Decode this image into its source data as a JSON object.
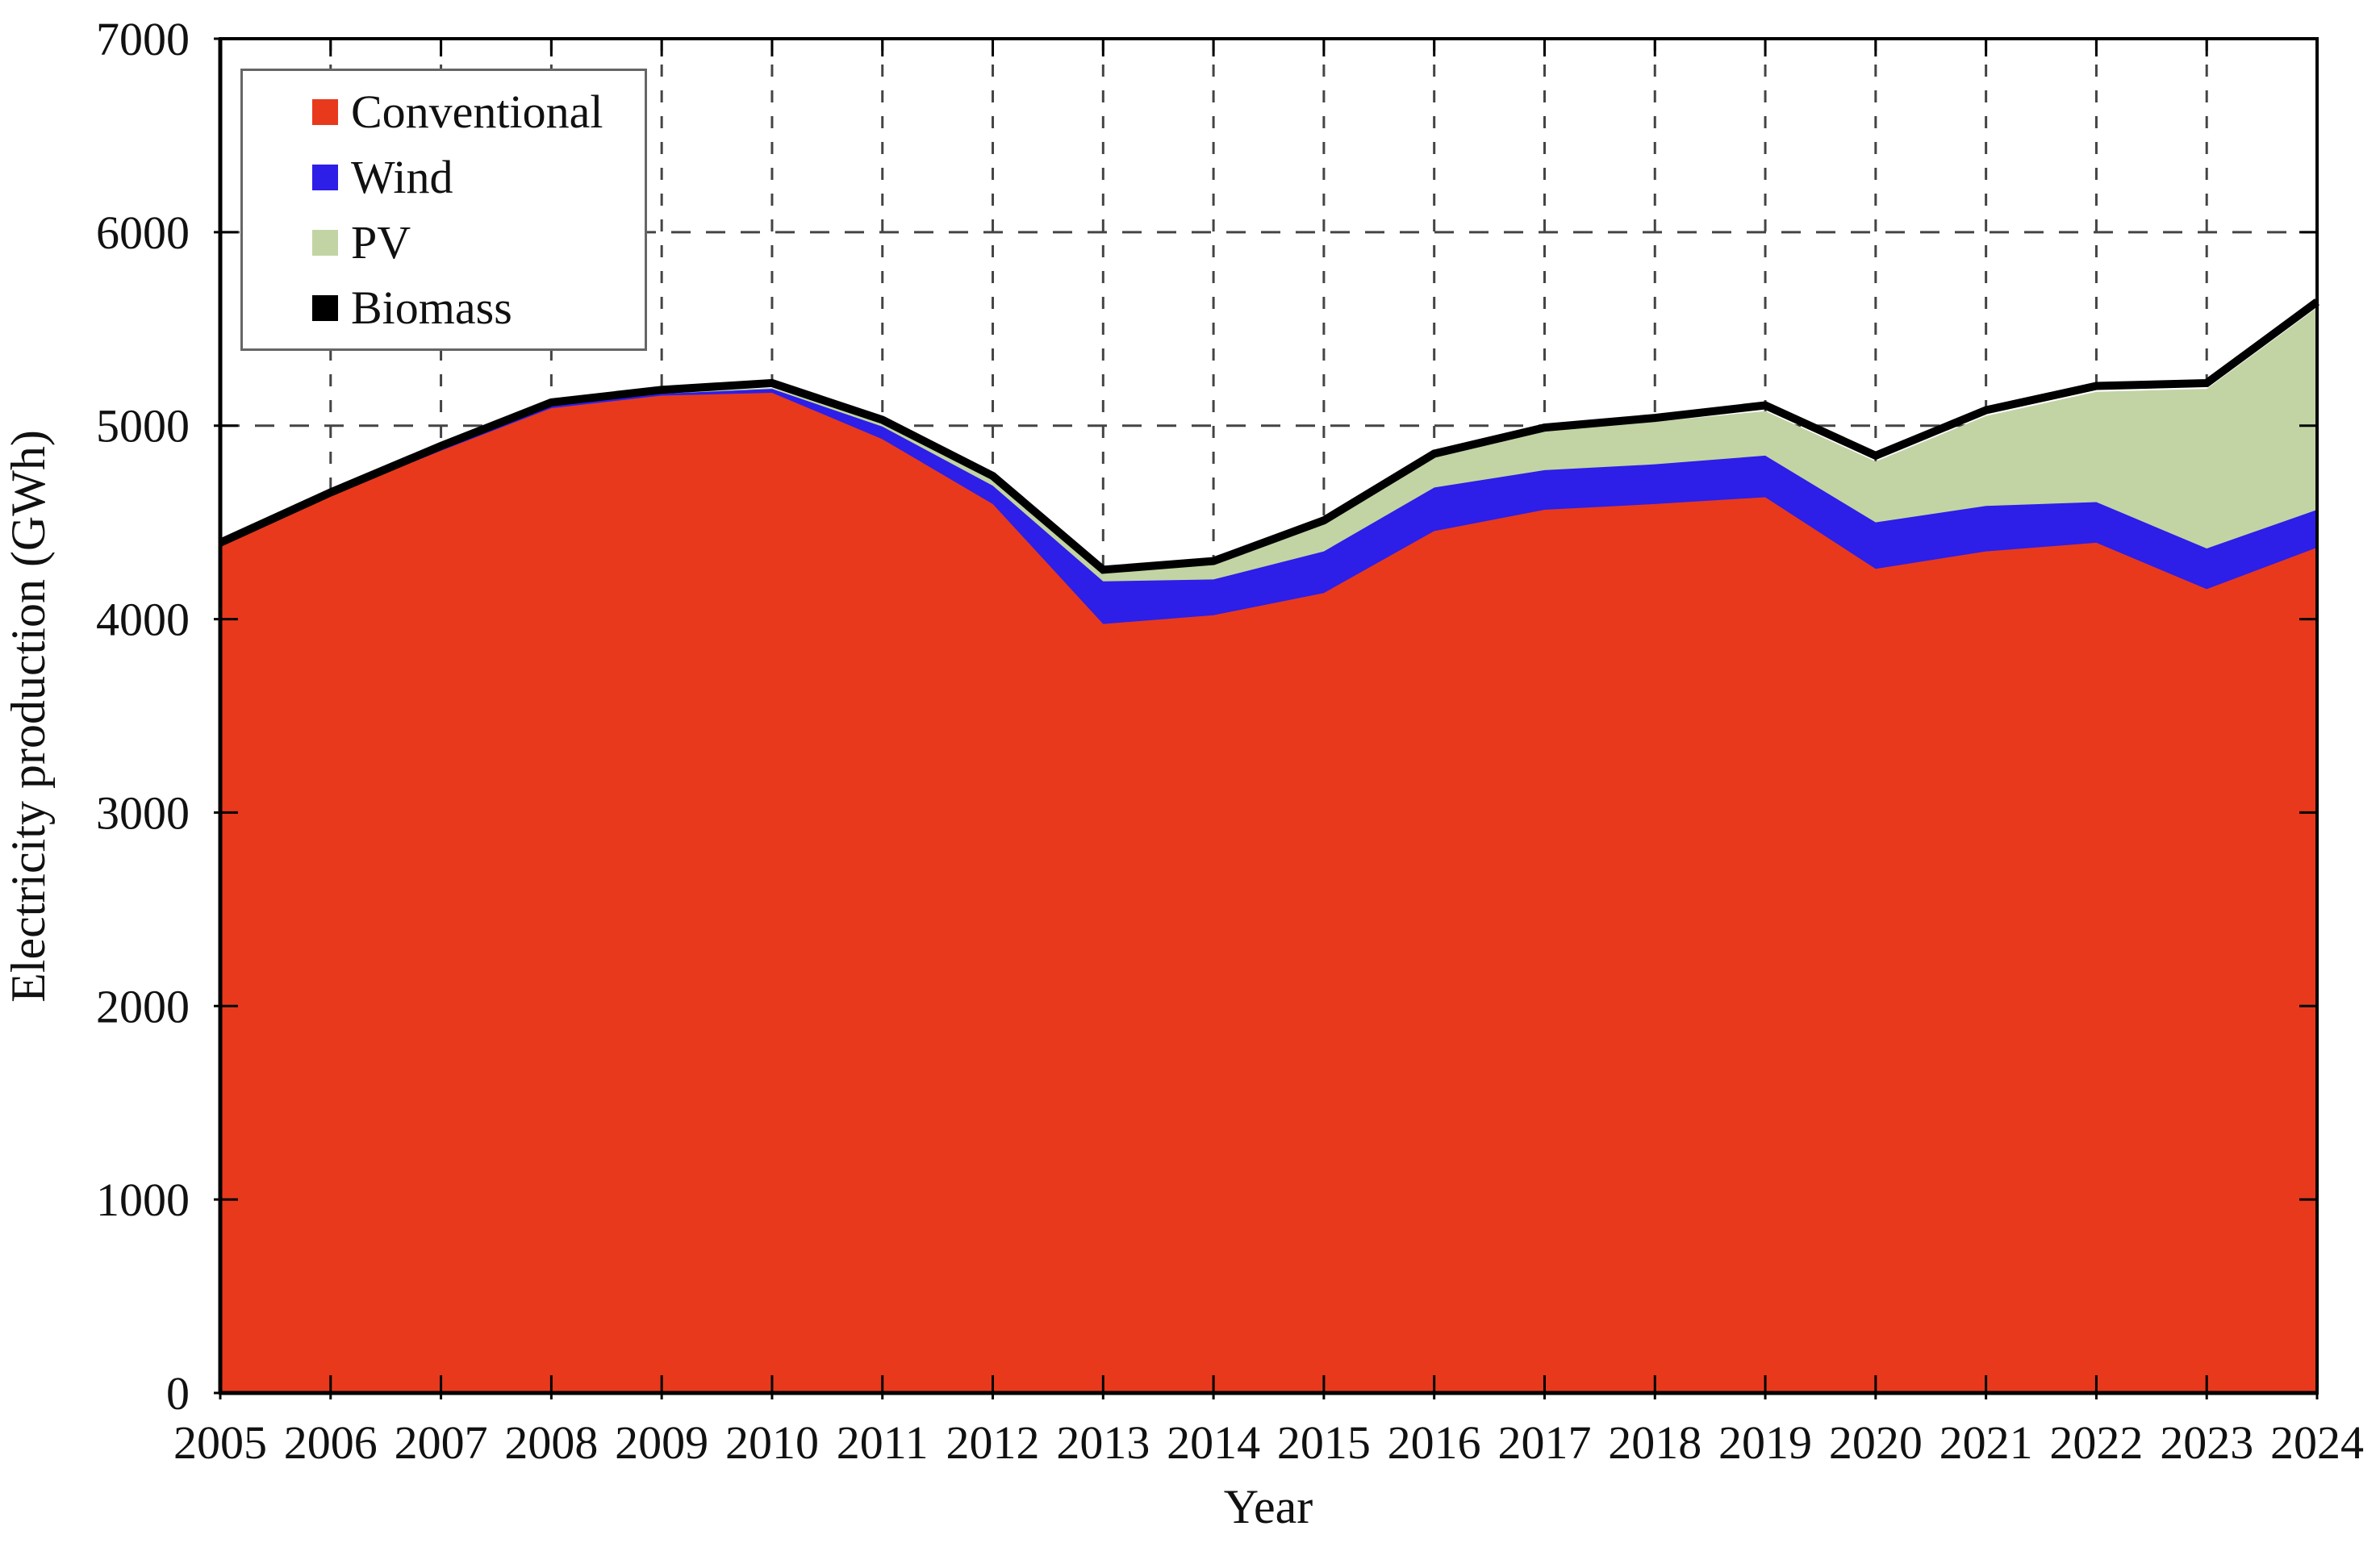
{
  "axes": {
    "y_label": "Electricity production (GWh)",
    "x_label": "Year",
    "y_ticks": [
      "0",
      "1000",
      "2000",
      "3000",
      "4000",
      "5000",
      "6000",
      "7000"
    ],
    "x_ticks": [
      "2005",
      "2006",
      "2007",
      "2008",
      "2009",
      "2010",
      "2011",
      "2012",
      "2013",
      "2014",
      "2015",
      "2016",
      "2017",
      "2018",
      "2019",
      "2020",
      "2021",
      "2022",
      "2023",
      "2024"
    ]
  },
  "legend": {
    "items": [
      {
        "label": "Conventional",
        "color": "#e8391d"
      },
      {
        "label": "Wind",
        "color": "#2d1ee8"
      },
      {
        "label": "PV",
        "color": "#c2d4a4"
      },
      {
        "label": "Biomass",
        "color": "#000000"
      }
    ]
  },
  "colors": {
    "grid": "#444444",
    "frame": "#000000",
    "background": "#ffffff"
  },
  "chart_data": {
    "type": "area",
    "stacked": true,
    "title": "",
    "xlabel": "Year",
    "ylabel": "Electricity production (GWh)",
    "xlim": [
      2005,
      2024
    ],
    "ylim": [
      0,
      7000
    ],
    "y_tick_step": 1000,
    "grid": true,
    "legend_position": "top-left",
    "x": [
      2005,
      2006,
      2007,
      2008,
      2009,
      2010,
      2011,
      2012,
      2013,
      2014,
      2015,
      2016,
      2017,
      2018,
      2019,
      2020,
      2021,
      2022,
      2023,
      2024
    ],
    "series": [
      {
        "name": "Conventional",
        "color": "#e8391d",
        "values": [
          4380,
          4640,
          4870,
          5090,
          5155,
          5170,
          4930,
          4595,
          3975,
          4020,
          4135,
          4455,
          4565,
          4595,
          4630,
          4260,
          4350,
          4395,
          4155,
          4370
        ]
      },
      {
        "name": "Wind",
        "color": "#2d1ee8",
        "values": [
          5,
          5,
          10,
          10,
          10,
          20,
          65,
          95,
          220,
          185,
          215,
          225,
          205,
          205,
          215,
          240,
          235,
          210,
          210,
          195
        ]
      },
      {
        "name": "PV",
        "color": "#c2d4a4",
        "values": [
          0,
          0,
          0,
          5,
          5,
          5,
          20,
          35,
          40,
          75,
          140,
          155,
          200,
          220,
          230,
          315,
          465,
          570,
          825,
          1045
        ]
      },
      {
        "name": "Biomass",
        "color": "#000000",
        "values": [
          10,
          10,
          15,
          15,
          15,
          25,
          15,
          15,
          20,
          20,
          20,
          20,
          20,
          20,
          30,
          30,
          30,
          30,
          30,
          30
        ]
      }
    ],
    "totals": [
      4395,
      4655,
      4895,
      5120,
      5185,
      5220,
      5030,
      4740,
      4255,
      4300,
      4510,
      4855,
      4990,
      5040,
      5105,
      4845,
      5080,
      5205,
      5220,
      5640
    ]
  }
}
